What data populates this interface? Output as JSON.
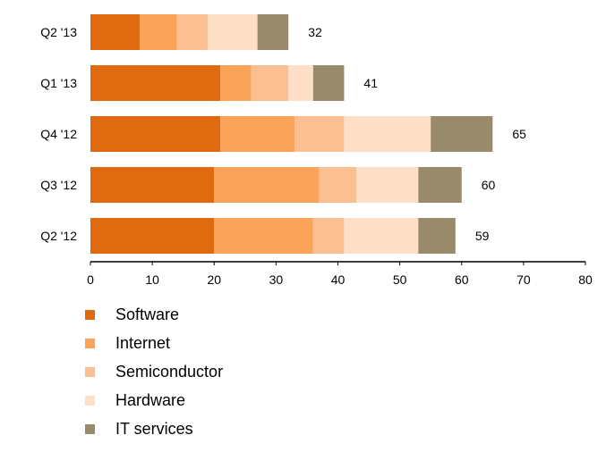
{
  "chart_data": {
    "type": "bar",
    "orientation": "horizontal",
    "stacked": true,
    "categories": [
      "Q2 '13",
      "Q1 '13",
      "Q4 '12",
      "Q3 '12",
      "Q2 '12"
    ],
    "series": [
      {
        "name": "Software",
        "color": "#e06a10",
        "values": [
          8,
          21,
          21,
          20,
          20
        ]
      },
      {
        "name": "Internet",
        "color": "#fba358",
        "values": [
          6,
          5,
          12,
          17,
          16
        ]
      },
      {
        "name": "Semiconductor",
        "color": "#fbbf91",
        "values": [
          5,
          6,
          8,
          6,
          5
        ]
      },
      {
        "name": "Hardware",
        "color": "#fde0c7",
        "values": [
          8,
          4,
          14,
          10,
          12
        ]
      },
      {
        "name": "IT services",
        "color": "#998a6b",
        "values": [
          5,
          5,
          10,
          7,
          6
        ]
      }
    ],
    "totals": [
      "32",
      "41",
      "65",
      "60",
      "59"
    ],
    "xlim": [
      0,
      80
    ],
    "xticks": [
      "0",
      "10",
      "20",
      "30",
      "40",
      "50",
      "60",
      "70",
      "80"
    ],
    "title": "",
    "xlabel": "",
    "ylabel": "",
    "grid": false,
    "legend_position": "bottom-left"
  }
}
